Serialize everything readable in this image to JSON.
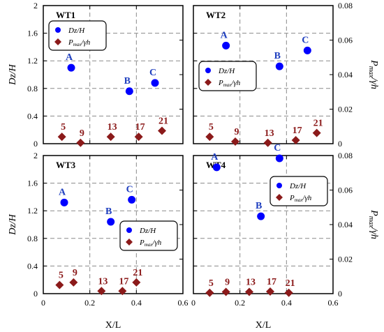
{
  "chart_data": {
    "type": "scatter",
    "x_ticks": [
      "0",
      "0.2",
      "0.4",
      "0.6"
    ],
    "xlim": [
      0,
      0.6
    ],
    "left_ylim": [
      0,
      2
    ],
    "left_ticks": [
      "0",
      "0.4",
      "0.8",
      "1.2",
      "1.6",
      "2"
    ],
    "right_ylim": [
      0,
      0.08
    ],
    "right_ticks": [
      "0",
      "0.02",
      "0.04",
      "0.06",
      "0.08"
    ],
    "xlabel": "X/L",
    "ylabel_left": "Dz/H",
    "ylabel_right_main": "P",
    "ylabel_right_sub": "max",
    "ylabel_right_tail": "/γh",
    "grid": "dashed",
    "colors": {
      "dz": "#0000FF",
      "pmax": "#8B1A1A",
      "label_dz": "#1F3FBF",
      "label_pmax": "#8B1A1A"
    },
    "legend": {
      "dz_label": "Dz/H",
      "pmax_main": "P",
      "pmax_sub": "max",
      "pmax_tail": "/γh"
    },
    "panels": [
      {
        "title": "WT1",
        "legend_position": "top-left",
        "dz_points": [
          {
            "label": "A",
            "x": 0.12,
            "y": 1.1
          },
          {
            "label": "B",
            "x": 0.37,
            "y": 0.76
          },
          {
            "label": "C",
            "x": 0.48,
            "y": 0.88
          }
        ],
        "pmax_points": [
          {
            "label": "5",
            "x": 0.08,
            "y": 0.004
          },
          {
            "label": "9",
            "x": 0.16,
            "y": 0.0005
          },
          {
            "label": "13",
            "x": 0.29,
            "y": 0.004
          },
          {
            "label": "17",
            "x": 0.41,
            "y": 0.004
          },
          {
            "label": "21",
            "x": 0.51,
            "y": 0.0075
          }
        ]
      },
      {
        "title": "WT2",
        "legend_position": "middle-left",
        "dz_points": [
          {
            "label": "A",
            "x": 0.14,
            "y": 1.42
          },
          {
            "label": "B",
            "x": 0.37,
            "y": 1.12
          },
          {
            "label": "C",
            "x": 0.49,
            "y": 1.35
          }
        ],
        "pmax_points": [
          {
            "label": "5",
            "x": 0.07,
            "y": 0.004
          },
          {
            "label": "9",
            "x": 0.18,
            "y": 0.0012
          },
          {
            "label": "13",
            "x": 0.32,
            "y": 0.0005
          },
          {
            "label": "17",
            "x": 0.44,
            "y": 0.002
          },
          {
            "label": "21",
            "x": 0.53,
            "y": 0.0062
          }
        ]
      },
      {
        "title": "WT3",
        "legend_position": "middle-right",
        "dz_points": [
          {
            "label": "A",
            "x": 0.09,
            "y": 1.32
          },
          {
            "label": "B",
            "x": 0.29,
            "y": 1.04
          },
          {
            "label": "C",
            "x": 0.38,
            "y": 1.36
          }
        ],
        "pmax_points": [
          {
            "label": "5",
            "x": 0.07,
            "y": 0.005
          },
          {
            "label": "9",
            "x": 0.13,
            "y": 0.0065
          },
          {
            "label": "13",
            "x": 0.25,
            "y": 0.0015
          },
          {
            "label": "17",
            "x": 0.34,
            "y": 0.0015
          },
          {
            "label": "21",
            "x": 0.4,
            "y": 0.0065
          }
        ]
      },
      {
        "title": "WT4",
        "legend_position": "top-right",
        "dz_points": [
          {
            "label": "A",
            "x": 0.1,
            "y": 1.83
          },
          {
            "label": "B",
            "x": 0.29,
            "y": 1.12
          },
          {
            "label": "C",
            "x": 0.37,
            "y": 1.96
          }
        ],
        "pmax_points": [
          {
            "label": "5",
            "x": 0.07,
            "y": 0.0005
          },
          {
            "label": "9",
            "x": 0.14,
            "y": 0.001
          },
          {
            "label": "13",
            "x": 0.24,
            "y": 0.001
          },
          {
            "label": "17",
            "x": 0.33,
            "y": 0.0012
          },
          {
            "label": "21",
            "x": 0.41,
            "y": 0.0005
          }
        ]
      }
    ]
  }
}
